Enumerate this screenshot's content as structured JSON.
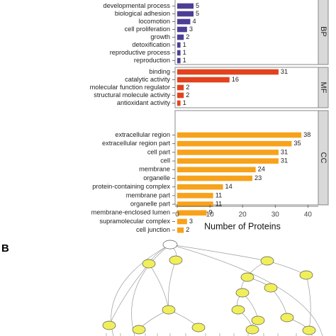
{
  "chart_data": {
    "type": "bar",
    "orientation": "horizontal",
    "xlabel": "Number of Proteins",
    "xlim": [
      0,
      42
    ],
    "xticks": [
      0,
      10,
      20,
      30,
      40
    ],
    "panel_label": "B",
    "series": [
      {
        "name": "BP",
        "color": "#4b3f95",
        "categories": [
          "developmental process",
          "biological adhesion",
          "locomotion",
          "cell proliferation",
          "growth",
          "detoxification",
          "reproductive process",
          "reproduction"
        ],
        "values": [
          5,
          5,
          4,
          3,
          2,
          1,
          1,
          1
        ]
      },
      {
        "name": "MF",
        "color": "#e2421d",
        "categories": [
          "binding",
          "catalytic activity",
          "molecular function regulator",
          "structural molecule activity",
          "antioxidant activity"
        ],
        "values": [
          31,
          16,
          2,
          2,
          1
        ]
      },
      {
        "name": "CC",
        "color": "#f7a21b",
        "categories": [
          "extracellular region",
          "extracellular region part",
          "cell part",
          "cell",
          "membrane",
          "organelle",
          "protein-containing complex",
          "membrane part",
          "organelle part",
          "membrane-enclosed lumen",
          "supramolecular complex",
          "cell junction"
        ],
        "values": [
          38,
          35,
          31,
          31,
          24,
          23,
          14,
          11,
          11,
          9,
          3,
          2
        ]
      }
    ]
  },
  "network": {
    "node_color": "#f0ef5a",
    "root_color": "#ffffff"
  }
}
